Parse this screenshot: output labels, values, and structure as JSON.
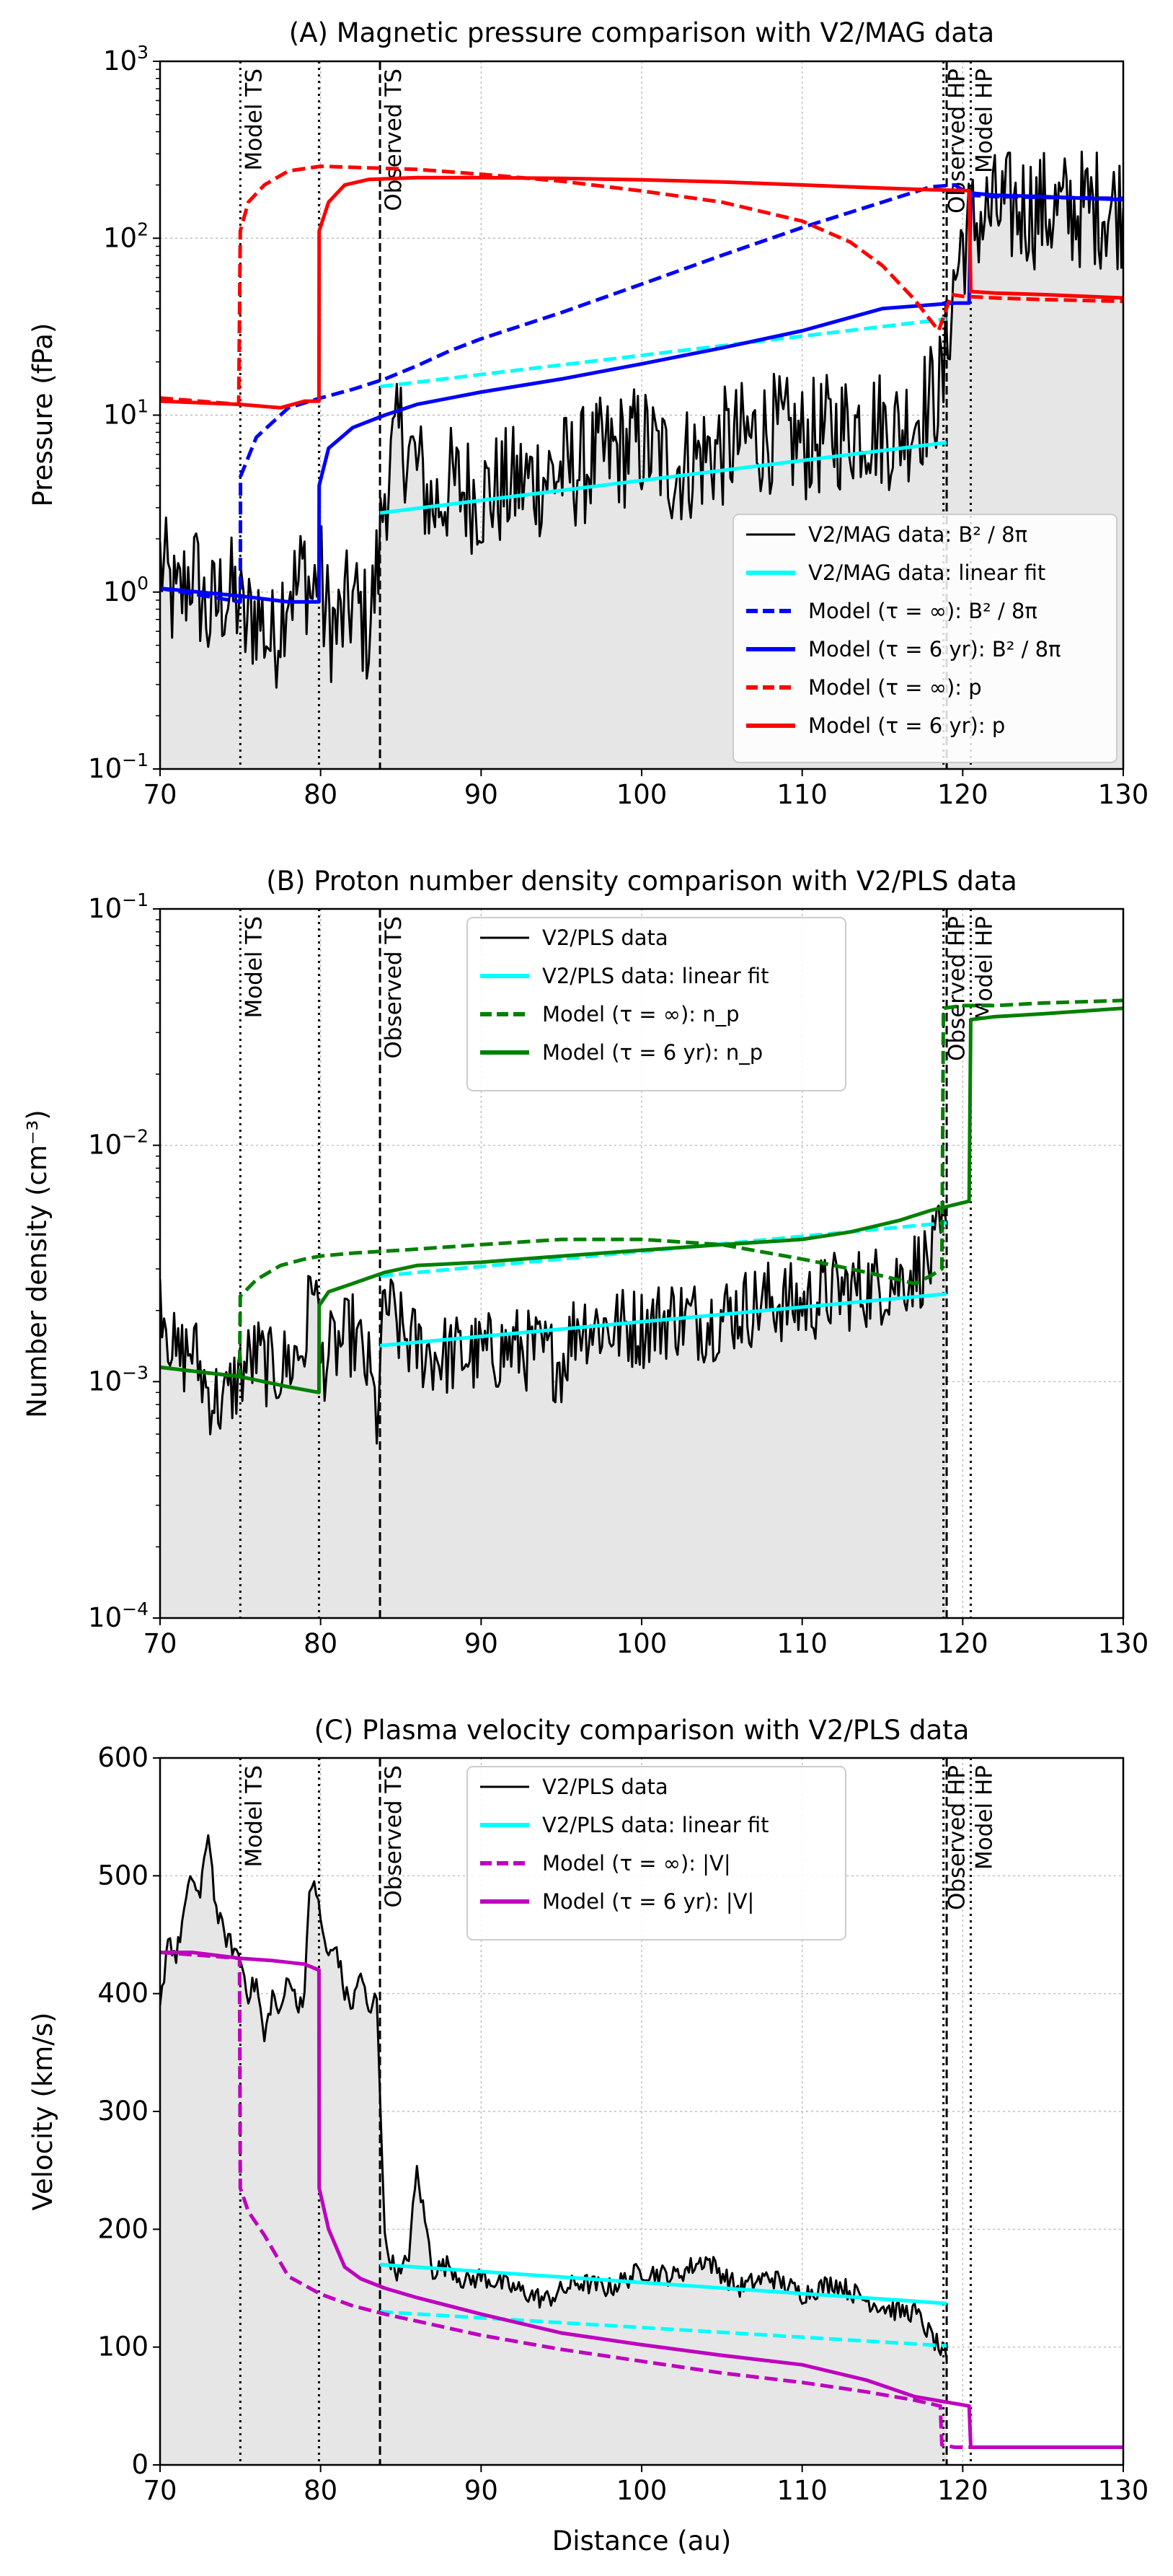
{
  "chart_data": [
    {
      "type": "line",
      "panel": "A",
      "title": "(A) Magnetic pressure comparison with V2/MAG data",
      "xlabel": "",
      "ylabel": "Pressure (fPa)",
      "yscale": "log",
      "xlim": [
        70,
        130
      ],
      "ylim_exp": [
        -1,
        3
      ],
      "x_ticks": [
        70,
        80,
        90,
        100,
        110,
        120,
        130
      ],
      "y_tick_exps": [
        -1,
        0,
        1,
        2,
        3
      ],
      "y_tick_base": "10",
      "grid": true,
      "legend_position": "lower-right",
      "vlines": [
        {
          "x": 75.0,
          "style": "dotted",
          "label": "Model TS"
        },
        {
          "x": 79.9,
          "style": "dotted",
          "label": ""
        },
        {
          "x": 83.7,
          "style": "dashed",
          "label": "Observed TS"
        },
        {
          "x": 118.8,
          "style": "dotted",
          "label": "Observed HP"
        },
        {
          "x": 119.0,
          "style": "dashed",
          "label": ""
        },
        {
          "x": 120.5,
          "style": "dotted",
          "label": "Model HP"
        }
      ],
      "series": [
        {
          "name": "V2/MAG data: B² / 8π",
          "color": "#000000",
          "style": "solid",
          "width": 3,
          "fill": true,
          "noisy": true,
          "x": [
            70,
            71,
            72,
            73,
            74,
            74.9,
            75.2,
            76,
            77,
            78,
            78.5,
            79,
            79.5,
            79.9,
            80.2,
            81,
            82,
            83,
            83.6,
            84,
            85,
            86,
            87,
            88,
            90,
            92,
            94,
            96,
            98,
            100,
            102,
            104,
            106,
            108,
            110,
            112,
            114,
            116,
            117,
            118,
            118.8,
            119.2,
            120,
            121,
            122,
            124,
            126,
            128,
            130
          ],
          "y": [
            1.5,
            0.8,
            1.4,
            0.7,
            1.0,
            0.9,
            0.6,
            0.8,
            0.5,
            1.2,
            1.0,
            1.4,
            0.9,
            1.6,
            0.8,
            0.6,
            0.9,
            0.6,
            1.5,
            4.0,
            8.0,
            5.0,
            3.0,
            4.0,
            3.5,
            4.0,
            4.5,
            5.0,
            6.0,
            7.0,
            5.0,
            6.0,
            7.0,
            8.0,
            7.0,
            8.0,
            9.0,
            8.0,
            10.0,
            12.0,
            15.0,
            40.0,
            100.0,
            130.0,
            140.0,
            150.0,
            140.0,
            150.0,
            148.0
          ],
          "noise": 0.35
        },
        {
          "name": "V2/MAG data: linear fit",
          "color": "#00FFFF",
          "style": "solid",
          "width": 5,
          "x": [
            83.7,
            119.0
          ],
          "y": [
            2.8,
            7.0
          ]
        },
        {
          "name": "cyan-dashed-fit",
          "color": "#00FFFF",
          "style": "dashed",
          "width": 5,
          "legend": false,
          "x": [
            83.7,
            119.0
          ],
          "y": [
            14.5,
            35.0
          ]
        },
        {
          "name": "Model (τ = ∞): B² / 8π",
          "color": "#0000FF",
          "style": "dashed",
          "width": 5,
          "x": [
            70,
            75.0,
            75.01,
            76,
            78,
            80,
            82,
            84,
            86,
            88,
            90,
            95,
            100,
            105,
            110,
            115,
            118,
            119.5,
            120.5,
            122,
            125,
            130
          ],
          "y": [
            1.05,
            0.88,
            4.5,
            7.5,
            11.0,
            12.5,
            14.0,
            16.0,
            19.0,
            23.0,
            27.0,
            38.0,
            55.0,
            80.0,
            115.0,
            160.0,
            195.0,
            200.0,
            175.0,
            172.0,
            170.0,
            168.0
          ]
        },
        {
          "name": "Model (τ = 6 yr): B² / 8π",
          "color": "#0000FF",
          "style": "solid",
          "width": 5,
          "x": [
            70,
            75,
            78,
            79.9,
            79.91,
            80.5,
            82,
            84,
            86,
            90,
            95,
            100,
            105,
            110,
            115,
            118,
            119.5,
            120.4,
            120.5,
            122,
            125,
            130
          ],
          "y": [
            1.05,
            0.95,
            0.88,
            0.88,
            4.0,
            6.5,
            8.5,
            10.0,
            11.5,
            13.5,
            16.0,
            19.5,
            24.0,
            30.0,
            40.0,
            42.0,
            43.0,
            43.0,
            180.0,
            175.0,
            172.0,
            165.0
          ]
        },
        {
          "name": "Model (τ = ∞): p",
          "color": "#FF0000",
          "style": "dashed",
          "width": 5,
          "x": [
            70,
            74.9,
            75.0,
            75.5,
            76.5,
            78,
            80,
            83,
            86,
            90,
            95,
            100,
            105,
            110,
            113,
            115,
            117,
            118.5,
            119.3,
            120,
            122,
            125,
            130
          ],
          "y": [
            12.5,
            11.5,
            110.0,
            160.0,
            200.0,
            240.0,
            255.0,
            250.0,
            245.0,
            230.0,
            210.0,
            185.0,
            160.0,
            125.0,
            95.0,
            70.0,
            45.0,
            30.0,
            48.0,
            47.0,
            46.0,
            45.0,
            44.0
          ]
        },
        {
          "name": "Model (τ = 6 yr): p",
          "color": "#FF0000",
          "style": "solid",
          "width": 5,
          "x": [
            70,
            75,
            77.5,
            79.0,
            79.9,
            79.91,
            80.5,
            81.5,
            83,
            86,
            90,
            95,
            100,
            105,
            110,
            115,
            118,
            120.4,
            120.5,
            122,
            125,
            130
          ],
          "y": [
            12.0,
            11.5,
            11.0,
            12.0,
            12.0,
            110.0,
            160.0,
            200.0,
            215.0,
            220.0,
            220.0,
            218.0,
            214.0,
            208.0,
            200.0,
            192.0,
            188.0,
            186.0,
            50.0,
            49.0,
            48.0,
            46.0
          ]
        }
      ]
    },
    {
      "type": "line",
      "panel": "B",
      "title": "(B) Proton number density comparison with V2/PLS data",
      "xlabel": "",
      "ylabel": "Number density (cm⁻³)",
      "yscale": "log",
      "xlim": [
        70,
        130
      ],
      "ylim_exp": [
        -4,
        -1
      ],
      "x_ticks": [
        70,
        80,
        90,
        100,
        110,
        120,
        130
      ],
      "y_tick_exps": [
        -4,
        -3,
        -2,
        -1
      ],
      "y_tick_base": "10",
      "grid": true,
      "legend_position": "top-center",
      "vlines": [
        {
          "x": 75.0,
          "style": "dotted",
          "label": "Model TS"
        },
        {
          "x": 79.9,
          "style": "dotted",
          "label": ""
        },
        {
          "x": 83.7,
          "style": "dashed",
          "label": "Observed TS"
        },
        {
          "x": 118.8,
          "style": "dotted",
          "label": "Observed HP"
        },
        {
          "x": 119.0,
          "style": "dashed",
          "label": ""
        },
        {
          "x": 120.5,
          "style": "dotted",
          "label": "Model HP"
        }
      ],
      "series": [
        {
          "name": "V2/PLS data",
          "color": "#000000",
          "style": "solid",
          "width": 3,
          "fill": true,
          "noisy": true,
          "x": [
            70,
            71,
            72,
            73,
            74,
            75,
            76,
            77,
            78,
            79,
            79.6,
            80,
            81,
            82,
            83,
            83.5,
            84,
            85,
            86,
            87,
            88,
            90,
            92,
            94,
            95,
            96,
            98,
            100,
            102,
            104,
            106,
            108,
            110,
            112,
            114,
            116,
            117,
            118,
            119
          ],
          "y": [
            0.0025,
            0.0012,
            0.0014,
            0.0009,
            0.0008,
            0.0011,
            0.0013,
            0.0011,
            0.0012,
            0.0014,
            0.0032,
            0.0012,
            0.0014,
            0.0016,
            0.0011,
            0.0007,
            0.0022,
            0.0016,
            0.0014,
            0.0013,
            0.0013,
            0.0013,
            0.0014,
            0.0013,
            0.0012,
            0.0018,
            0.0017,
            0.0017,
            0.0019,
            0.0018,
            0.002,
            0.0022,
            0.0021,
            0.0024,
            0.0025,
            0.0027,
            0.003,
            0.0032,
            0.0045
          ],
          "noise": 0.18
        },
        {
          "name": "V2/PLS data: linear fit",
          "color": "#00FFFF",
          "style": "solid",
          "width": 5,
          "x": [
            83.7,
            119.0
          ],
          "y": [
            0.00142,
            0.00235
          ]
        },
        {
          "name": "cyan-dashed-fit",
          "color": "#00FFFF",
          "style": "dashed",
          "width": 5,
          "legend": false,
          "x": [
            83.7,
            119.0
          ],
          "y": [
            0.0028,
            0.0047
          ]
        },
        {
          "name": "Model (τ = ∞): n_p",
          "color": "#008000",
          "style": "dashed",
          "width": 5,
          "x": [
            70,
            74.95,
            75.0,
            76,
            77.5,
            79,
            80,
            82,
            85,
            90,
            95,
            100,
            105,
            110,
            112,
            114,
            116,
            117,
            118,
            118.7,
            118.8,
            120,
            122,
            125,
            130
          ],
          "y": [
            0.00115,
            0.00105,
            0.0023,
            0.0027,
            0.0031,
            0.0033,
            0.0034,
            0.0035,
            0.0036,
            0.0038,
            0.004,
            0.004,
            0.0038,
            0.0033,
            0.0031,
            0.0029,
            0.0027,
            0.0026,
            0.0028,
            0.003,
            0.038,
            0.039,
            0.039,
            0.04,
            0.041
          ]
        },
        {
          "name": "Model (τ = 6 yr): n_p",
          "color": "#008000",
          "style": "solid",
          "width": 5,
          "x": [
            70,
            75,
            78,
            79.9,
            79.91,
            80.5,
            82,
            84,
            86,
            90,
            95,
            100,
            105,
            110,
            113,
            116,
            118,
            120.4,
            120.5,
            122,
            125,
            130
          ],
          "y": [
            0.00115,
            0.00105,
            0.00095,
            0.0009,
            0.0021,
            0.0024,
            0.0026,
            0.0029,
            0.0031,
            0.0032,
            0.0034,
            0.0036,
            0.0038,
            0.004,
            0.0043,
            0.0048,
            0.0053,
            0.0058,
            0.034,
            0.035,
            0.036,
            0.038
          ]
        }
      ]
    },
    {
      "type": "line",
      "panel": "C",
      "title": "(C) Plasma velocity comparison with V2/PLS data",
      "xlabel": "Distance (au)",
      "ylabel": "Velocity (km/s)",
      "yscale": "linear",
      "xlim": [
        70,
        130
      ],
      "ylim": [
        0,
        600
      ],
      "x_ticks": [
        70,
        80,
        90,
        100,
        110,
        120,
        130
      ],
      "y_ticks": [
        0,
        100,
        200,
        300,
        400,
        500,
        600
      ],
      "grid": true,
      "legend_position": "top-center",
      "vlines": [
        {
          "x": 75.0,
          "style": "dotted",
          "label": "Model TS"
        },
        {
          "x": 79.9,
          "style": "dotted",
          "label": ""
        },
        {
          "x": 83.7,
          "style": "dashed",
          "label": "Observed TS"
        },
        {
          "x": 118.8,
          "style": "dotted",
          "label": "Observed HP"
        },
        {
          "x": 119.0,
          "style": "dashed",
          "label": ""
        },
        {
          "x": 120.5,
          "style": "dotted",
          "label": "Model HP"
        }
      ],
      "series": [
        {
          "name": "V2/PLS data",
          "color": "#000000",
          "style": "solid",
          "width": 3,
          "fill": true,
          "noisy": true,
          "x": [
            70,
            70.5,
            71,
            71.5,
            72,
            72.5,
            73,
            73.5,
            74,
            74.5,
            75,
            75.5,
            76,
            76.5,
            77,
            77.5,
            78,
            78.5,
            79,
            79.3,
            79.6,
            80,
            80.5,
            81,
            81.5,
            82,
            82.5,
            83,
            83.5,
            83.7,
            84,
            84.5,
            85,
            85.5,
            86,
            87,
            88,
            89,
            90,
            92,
            94,
            96,
            98,
            100,
            102,
            104,
            106,
            108,
            110,
            112,
            114,
            116,
            117,
            118,
            119
          ],
          "y": [
            385,
            450,
            430,
            470,
            500,
            480,
            540,
            470,
            450,
            440,
            430,
            400,
            410,
            360,
            400,
            380,
            420,
            390,
            400,
            480,
            500,
            460,
            430,
            440,
            400,
            390,
            420,
            380,
            400,
            320,
            190,
            170,
            160,
            180,
            250,
            165,
            170,
            155,
            160,
            150,
            140,
            155,
            150,
            165,
            160,
            175,
            150,
            160,
            145,
            155,
            140,
            130,
            130,
            110,
            90
          ],
          "noise": 9
        },
        {
          "name": "V2/PLS data: linear fit",
          "color": "#00FFFF",
          "style": "solid",
          "width": 5,
          "x": [
            83.7,
            119.0
          ],
          "y": [
            170,
            137
          ]
        },
        {
          "name": "cyan-dashed-fit",
          "color": "#00FFFF",
          "style": "dashed",
          "width": 5,
          "legend": false,
          "x": [
            83.7,
            119.0
          ],
          "y": [
            130,
            101
          ]
        },
        {
          "name": "Model (τ = ∞): |V|",
          "color": "#BF00BF",
          "style": "dashed",
          "width": 5,
          "x": [
            70,
            73,
            74.95,
            75.0,
            75.5,
            76.5,
            78,
            80,
            82,
            84,
            86,
            90,
            95,
            100,
            105,
            110,
            114,
            117,
            118.6,
            118.7,
            119.5,
            120.5,
            122,
            125,
            130
          ],
          "y": [
            435,
            432,
            430,
            235,
            215,
            195,
            160,
            145,
            135,
            128,
            122,
            110,
            98,
            88,
            78,
            70,
            62,
            55,
            50,
            17,
            15,
            15,
            15,
            15,
            15
          ]
        },
        {
          "name": "Model (τ = 6 yr): |V|",
          "color": "#BF00BF",
          "style": "solid",
          "width": 5,
          "x": [
            70,
            72,
            75,
            77,
            79,
            79.9,
            79.91,
            80.5,
            81.5,
            82.5,
            84,
            86,
            90,
            95,
            100,
            105,
            110,
            114,
            117,
            120.4,
            120.5,
            122,
            125,
            130
          ],
          "y": [
            435,
            435,
            430,
            428,
            425,
            420,
            235,
            200,
            168,
            158,
            150,
            142,
            128,
            112,
            102,
            93,
            85,
            72,
            58,
            50,
            15,
            15,
            15,
            15
          ]
        }
      ]
    }
  ]
}
